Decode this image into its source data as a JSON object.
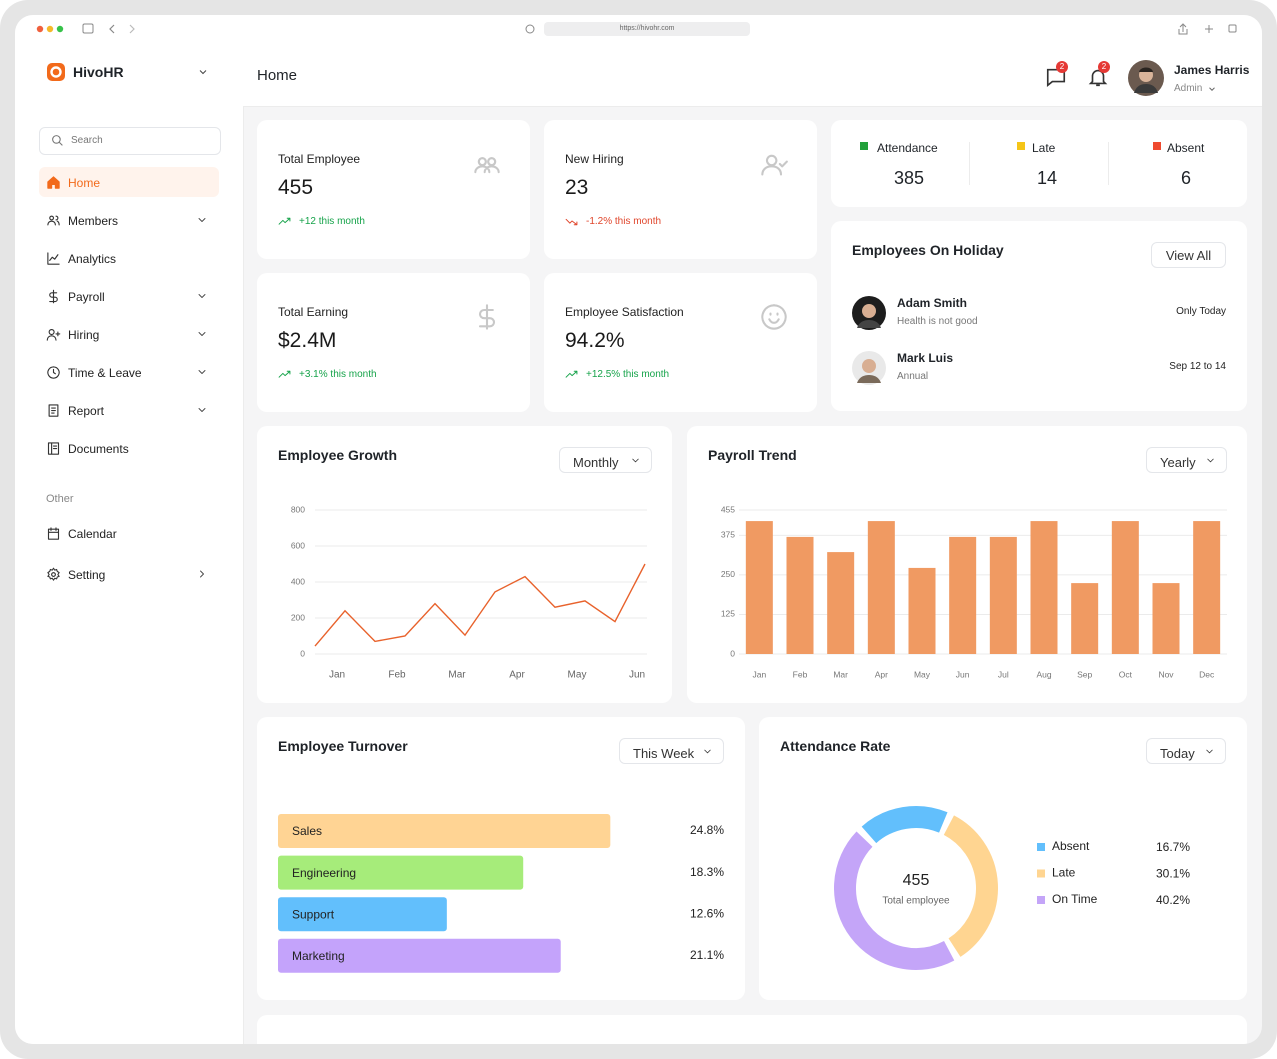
{
  "browser": {
    "url": "https://hivohr.com"
  },
  "sidebar": {
    "brand": "HivoHR",
    "search": "Search",
    "nav": [
      "Home",
      "Members",
      "Analytics",
      "Payroll",
      "Hiring",
      "Time & Leave",
      "Report",
      "Documents"
    ],
    "section": "Other",
    "other": [
      "Calendar",
      "Setting"
    ]
  },
  "header": {
    "title": "Home",
    "messages_badge": "2",
    "notifications_badge": "2",
    "user": {
      "name": "James Harris",
      "role": "Admin"
    }
  },
  "stats": [
    {
      "label": "Total Employee",
      "value": 455,
      "change": "+12 this month"
    },
    {
      "label": "New Hiring",
      "value": 23,
      "change": "-1.2% this month"
    },
    {
      "label": "Total Earning",
      "value": "$2.4M",
      "change": "+3.1% this month"
    },
    {
      "label": "Employee Satisfaction",
      "value": "94.2%",
      "change": "+12.5% this month"
    }
  ],
  "attendance_summary": [
    {
      "label": "Attendance",
      "value": 385,
      "color": "#22a03a"
    },
    {
      "label": "Late",
      "value": 14,
      "color": "#f5c518"
    },
    {
      "label": "Absent",
      "value": 6,
      "color": "#ef4a2f"
    }
  ],
  "holiday": {
    "title": "Employees On Holiday",
    "action": "View All",
    "employees": [
      {
        "name": "Adam Smith",
        "note": "Health is not good",
        "date": "Only Today"
      },
      {
        "name": "Mark Luis",
        "note": "Annual",
        "date": "Sep 12 to 14"
      }
    ]
  },
  "chart_data": [
    {
      "type": "line",
      "title": "Employee Growth",
      "filter": "Monthly",
      "categories": [
        "Jan",
        null,
        "Feb",
        null,
        "Mar",
        null,
        "Apr",
        null,
        "May",
        null,
        "Jun",
        null
      ],
      "values": [
        44,
        240,
        70,
        100,
        280,
        105,
        345,
        430,
        260,
        295,
        180,
        500
      ],
      "color": "#e8622c",
      "ylim": [
        0,
        800
      ],
      "yticks": [
        0,
        200,
        400,
        600,
        800
      ],
      "grid": true
    },
    {
      "type": "bar",
      "title": "Payroll Trend",
      "filter": "Yearly",
      "categories": [
        "Jan",
        "Feb",
        "Mar",
        "Apr",
        "May",
        "Jun",
        "Jul",
        "Aug",
        "Sep",
        "Oct",
        "Nov",
        "Dec"
      ],
      "values": [
        420,
        370,
        322,
        420,
        272,
        370,
        370,
        420,
        224,
        420,
        224,
        420
      ],
      "color": "#f09a62",
      "ylim": [
        0,
        455
      ],
      "yticks": [
        0,
        125,
        250,
        375,
        455
      ],
      "grid": true
    },
    {
      "type": "hbar",
      "title": "Employee Turnover",
      "filter": "This Week",
      "categories": [
        "Sales",
        "Engineering",
        "Support",
        "Marketing"
      ],
      "values": [
        24.8,
        18.3,
        12.6,
        21.1
      ],
      "value_labels": [
        "24.8%",
        "18.3%",
        "12.6%",
        "21.1%"
      ],
      "colors": [
        "#ffd494",
        "#a6ec7a",
        "#62bffc",
        "#c4a3fb"
      ]
    },
    {
      "type": "donut",
      "title": "Attendance Rate",
      "filter": "Today",
      "center_value": 455,
      "center_label": "Total employee",
      "categories": [
        "Absent",
        "Late",
        "On Time"
      ],
      "values": [
        16.7,
        30.1,
        40.2
      ],
      "value_labels": [
        "16.7%",
        "30.1%",
        "40.2%"
      ],
      "colors": [
        "#62bffc",
        "#ffd591",
        "#c4a5f8"
      ]
    }
  ]
}
